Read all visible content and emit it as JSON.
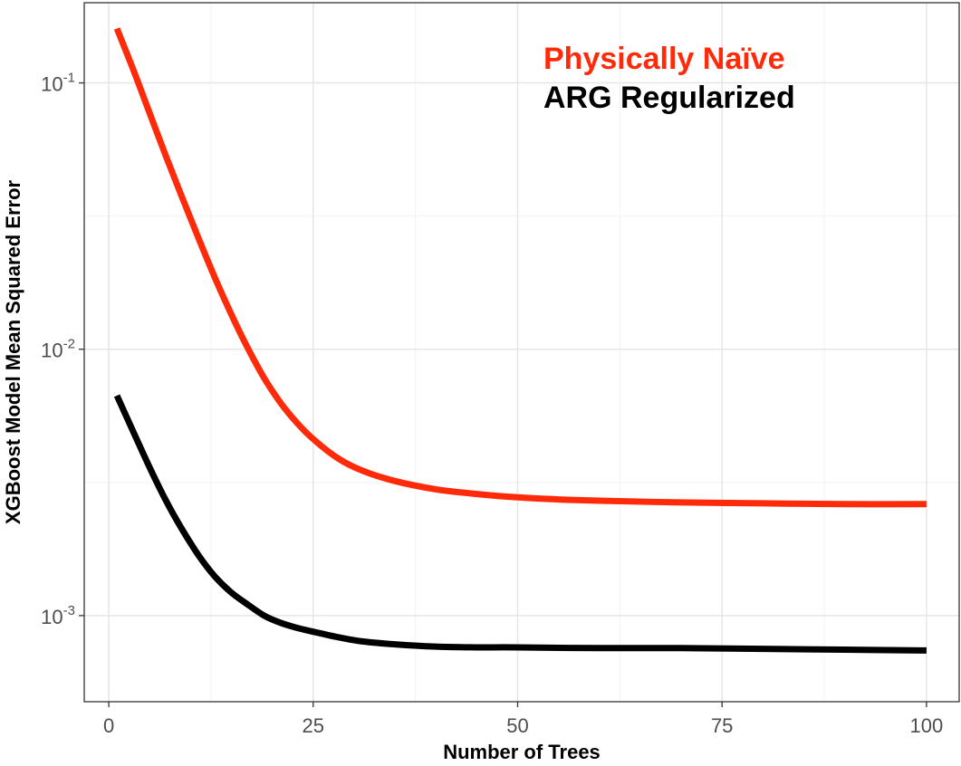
{
  "chart_data": {
    "type": "line",
    "title": "",
    "xlabel": "Number of Trees",
    "ylabel": "XGBoost Model Mean Squared Error",
    "x_scale": "linear",
    "y_scale": "log10",
    "xlim": [
      -3,
      104
    ],
    "ylim": [
      0.000475,
      0.2
    ],
    "x_ticks": [
      {
        "value": 0,
        "label": "0"
      },
      {
        "value": 25,
        "label": "25"
      },
      {
        "value": 50,
        "label": "50"
      },
      {
        "value": 75,
        "label": "75"
      },
      {
        "value": 100,
        "label": "100"
      }
    ],
    "y_ticks": [
      {
        "value": 0.1,
        "base": "10",
        "exp": "-1"
      },
      {
        "value": 0.01,
        "base": "10",
        "exp": "-2"
      },
      {
        "value": 0.001,
        "base": "10",
        "exp": "-3"
      }
    ],
    "y_minor_ticks": [
      0.0316,
      0.00316
    ],
    "grid": true,
    "legend_position": "top-right",
    "series": [
      {
        "name": "Physically Naïve",
        "color": "#ff2a0a",
        "x": [
          1,
          3,
          5,
          7,
          9,
          11,
          13,
          15,
          17,
          19,
          21,
          23,
          25,
          28,
          31,
          35,
          40,
          45,
          50,
          55,
          60,
          70,
          80,
          90,
          100
        ],
        "y": [
          0.16,
          0.112,
          0.077,
          0.053,
          0.037,
          0.026,
          0.0185,
          0.0135,
          0.0101,
          0.0078,
          0.0063,
          0.0053,
          0.0046,
          0.0039,
          0.0035,
          0.0032,
          0.00298,
          0.00286,
          0.00278,
          0.00273,
          0.0027,
          0.00266,
          0.00264,
          0.00262,
          0.00262
        ]
      },
      {
        "name": "ARG Regularized",
        "color": "#000000",
        "x": [
          1,
          3,
          5,
          7,
          9,
          11,
          13,
          15,
          17,
          19,
          21,
          23,
          25,
          28,
          31,
          35,
          40,
          45,
          50,
          60,
          70,
          80,
          90,
          100
        ],
        "y": [
          0.0067,
          0.0049,
          0.0036,
          0.0027,
          0.0021,
          0.00168,
          0.0014,
          0.00122,
          0.0011,
          0.001,
          0.00094,
          0.0009,
          0.00087,
          0.00083,
          0.0008,
          0.00078,
          0.000765,
          0.00076,
          0.00076,
          0.000755,
          0.000755,
          0.00075,
          0.000745,
          0.00074
        ]
      }
    ]
  }
}
